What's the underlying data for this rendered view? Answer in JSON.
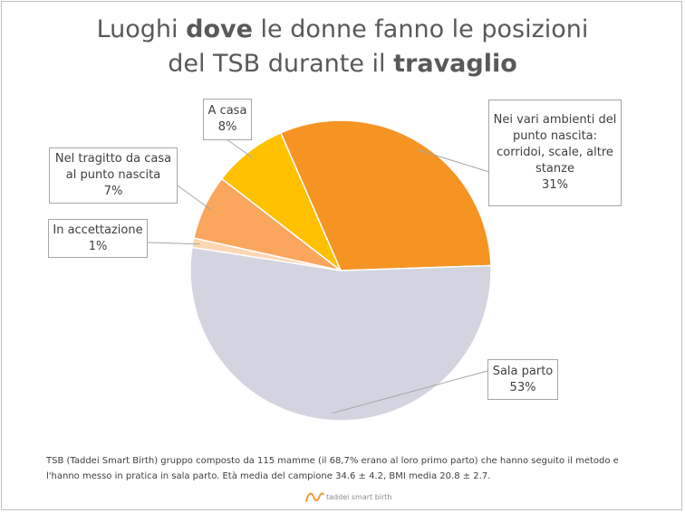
{
  "title": {
    "line1_pre": "Luoghi ",
    "line1_bold": "dove",
    "line1_post": " le donne fanno le posizioni",
    "line2_pre": "del TSB durante il ",
    "line2_bold": "travaglio"
  },
  "chart_data": {
    "type": "pie",
    "slices": [
      {
        "label_lines": [
          "Nei vari ambienti del",
          "punto nascita:",
          "corridoi, scale, altre",
          "stanze"
        ],
        "percent_label": "31%",
        "value": 31,
        "color": "#f59423"
      },
      {
        "label_lines": [
          "Sala parto"
        ],
        "percent_label": "53%",
        "value": 53,
        "color": "#d3d4e0"
      },
      {
        "label_lines": [
          "In accettazione"
        ],
        "percent_label": "1%",
        "value": 1,
        "color": "#fdd6b1"
      },
      {
        "label_lines": [
          "Nel tragitto da casa",
          "al punto nascita"
        ],
        "percent_label": "7%",
        "value": 7,
        "color": "#fba65d"
      },
      {
        "label_lines": [
          "A casa"
        ],
        "percent_label": "8%",
        "value": 8,
        "color": "#ffc000"
      }
    ]
  },
  "footnote": "TSB (Taddei Smart Birth) gruppo composto da 115 mamme (il 68,7% erano al loro primo parto) che hanno seguito il metodo e l'hanno messo in pratica in sala parto. Età media del campione 34.6 ± 4.2, BMI media 20.8 ± 2.7.",
  "logo": {
    "text": "taddei smart birth",
    "accent_color": "#f59423"
  }
}
